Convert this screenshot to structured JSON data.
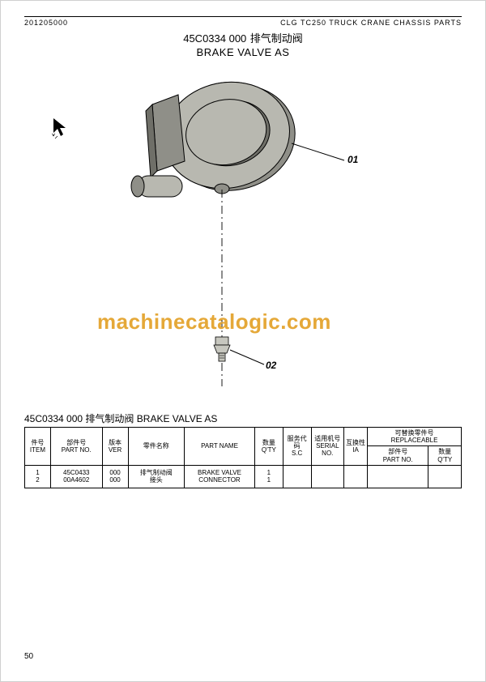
{
  "header": {
    "doc_number": "201205000",
    "model_line": "CLG TC250 TRUCK CRANE CHASSIS PARTS"
  },
  "title": {
    "code": "45C0334 000",
    "name_cn": "排气制动阀",
    "name_en": "BRAKE VALVE AS"
  },
  "watermark": "machinecatalogic.com",
  "callouts": {
    "c01": "01",
    "c02": "02"
  },
  "diagram": {
    "main_fill": "#b8b8b0",
    "shadow_fill": "#8f8f88",
    "dark_fill": "#6f6f68",
    "line_color": "#000000",
    "leader_color": "#000000",
    "small_part_fill": "#c7c7bf"
  },
  "table": {
    "title_code": "45C0334 000",
    "title_cn": "排气制动阀",
    "title_en": "BRAKE VALVE AS",
    "headers": {
      "item_cn": "件号",
      "item_en": "ITEM",
      "partno_cn": "部件号",
      "partno_en": "PART NO.",
      "ver_cn": "版本",
      "ver_en": "VER",
      "cnname": "零件名称",
      "enname": "PART NAME",
      "qty_cn": "数量",
      "qty_en": "Q'TY",
      "sc_cn": "服务代码",
      "sc_en": "S.C",
      "serial_cn": "适用机号",
      "serial_en": "SERIAL NO.",
      "ia_cn": "互换性",
      "ia_en": "IA",
      "replaceable_cn": "可替换零件号",
      "replaceable_en": "REPLACEABLE",
      "rep_partno_cn": "部件号",
      "rep_partno_en": "PART NO.",
      "rep_qty_cn": "数量",
      "rep_qty_en": "Q'TY"
    },
    "rows": [
      {
        "item": "1",
        "partno": "45C0433",
        "ver": "000",
        "cnname": "排气制动阀",
        "enname": "BRAKE VALVE",
        "qty": "1",
        "sc": "",
        "serial": "",
        "ia": "",
        "rep_partno": "",
        "rep_qty": ""
      },
      {
        "item": "2",
        "partno": "00A4602",
        "ver": "000",
        "cnname": "接头",
        "enname": "CONNECTOR",
        "qty": "1",
        "sc": "",
        "serial": "",
        "ia": "",
        "rep_partno": "",
        "rep_qty": ""
      }
    ]
  },
  "page_number": "50"
}
